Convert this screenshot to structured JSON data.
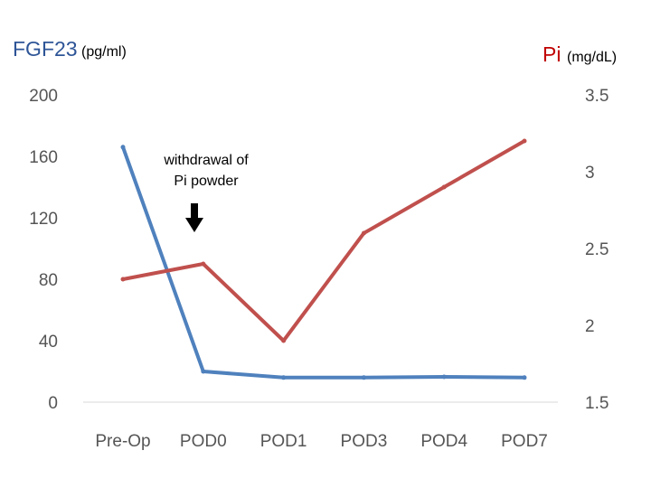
{
  "chart_data": {
    "type": "line",
    "title": "",
    "categories": [
      "Pre-Op",
      "POD0",
      "POD1",
      "POD3",
      "POD4",
      "POD7"
    ],
    "left_axis": {
      "label": "FGF23",
      "unit": "(pg/ml)",
      "ylim": [
        0,
        200
      ],
      "ticks": [
        "0",
        "40",
        "80",
        "120",
        "160",
        "200"
      ],
      "color": "#2E5597"
    },
    "right_axis": {
      "label": "Pi",
      "unit": "(mg/dL)",
      "ylim": [
        1.5,
        3.5
      ],
      "ticks": [
        "1.5",
        "2",
        "2.5",
        "3",
        "3.5"
      ],
      "color": "#C00000"
    },
    "series": [
      {
        "name": "FGF23",
        "axis": "left",
        "color": "#4F81BD",
        "values": [
          166,
          20,
          16,
          16,
          16.5,
          16
        ]
      },
      {
        "name": "Pi",
        "axis": "right",
        "color": "#C0504D",
        "values": [
          2.3,
          2.4,
          1.9,
          2.6,
          2.9,
          3.2
        ]
      }
    ],
    "annotation": {
      "line1": "withdrawal of",
      "line2": "Pi powder",
      "category": "POD0"
    },
    "grid": false
  }
}
